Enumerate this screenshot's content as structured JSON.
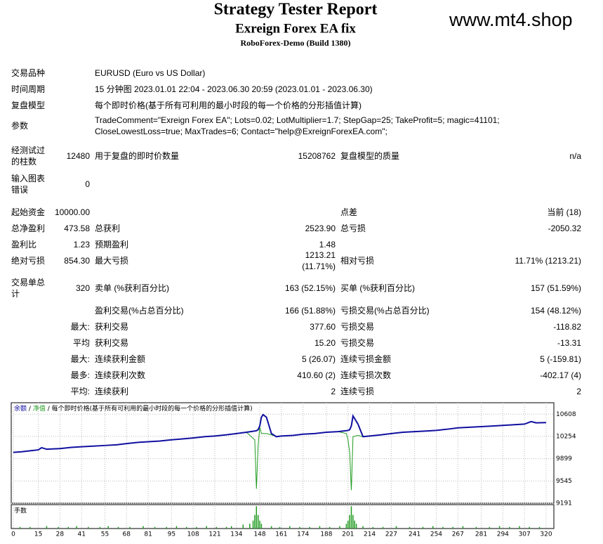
{
  "header": {
    "title": "Strategy Tester Report",
    "subtitle": "Exreign Forex EA fix",
    "server": "RoboForex-Demo (Build 1380)",
    "watermark": "www.mt4.shop"
  },
  "info": [
    {
      "label": "交易品种",
      "value": "EURUSD (Euro vs US Dollar)"
    },
    {
      "label": "时间周期",
      "value": "15 分钟图 2023.01.01 22:04 - 2023.06.30 20:59 (2023.01.01 - 2023.06.30)"
    },
    {
      "label": "复盘模型",
      "value": "每个即时价格(基于所有可利用的最小时段的每一个价格的分形插值计算)"
    },
    {
      "label": "参数",
      "value": "TradeComment=\"Exreign Forex EA\"; Lots=0.02; LotMultiplier=1.7; StepGap=25; TakeProfit=5; magic=41101; CloseLowestLoss=true; MaxTrades=6; Contact=\"help@ExreignForexEA.com\";"
    }
  ],
  "stats": [
    [
      "经测试过的柱数",
      "12480",
      "用于复盘的即时价数量",
      "15208762",
      "复盘模型的质量",
      "n/a"
    ],
    [
      "输入图表错误",
      "0",
      null,
      null,
      null,
      null
    ],
    [
      "起始资金",
      "10000.00",
      null,
      null,
      "点差",
      "当前 (18)"
    ],
    [
      "总净盈利",
      "473.58",
      "总获利",
      "2523.90",
      "总亏损",
      "-2050.32"
    ],
    [
      "盈利比",
      "1.23",
      "预期盈利",
      "1.48",
      null,
      null
    ],
    [
      "绝对亏损",
      "854.30",
      "最大亏损",
      "1213.21 (11.71%)",
      "相对亏损",
      "11.71% (1213.21)"
    ],
    [
      "交易单总计",
      "320",
      "卖单 (%获利百分比)",
      "163 (52.15%)",
      "买单 (%获利百分比)",
      "157 (51.59%)"
    ],
    [
      null,
      null,
      "盈利交易(%占总百分比)",
      "166 (51.88%)",
      "亏损交易(%占总百分比)",
      "154 (48.12%)"
    ],
    [
      null,
      "最大:",
      "获利交易",
      "377.60",
      "亏损交易",
      "-118.82"
    ],
    [
      null,
      "平均",
      "获利交易",
      "15.20",
      "亏损交易",
      "-13.31"
    ],
    [
      null,
      "最大:",
      "连续获利金额",
      "5 (26.07)",
      "连续亏损金额",
      "5 (-159.81)"
    ],
    [
      null,
      "最多:",
      "连续获利次数",
      "410.60 (2)",
      "连续亏损次数",
      "-402.17 (4)"
    ],
    [
      null,
      "平均:",
      "连续获利",
      "2",
      "连续亏损",
      "2"
    ]
  ],
  "chart_data": {
    "type": "line",
    "legend_separator": "/",
    "legend_note": "每个即时价格(基于所有可利用的最小时段的每一个价格的分形插值计算)",
    "x": [
      0,
      5,
      10,
      15,
      17,
      20,
      28,
      35,
      41,
      48,
      55,
      62,
      68,
      75,
      81,
      88,
      95,
      102,
      108,
      115,
      121,
      128,
      134,
      140,
      145,
      146,
      147,
      148,
      149,
      150,
      152,
      155,
      158,
      161,
      168,
      174,
      181,
      188,
      195,
      200,
      201,
      202,
      203,
      204,
      207,
      210,
      214,
      221,
      227,
      234,
      241,
      248,
      254,
      261,
      267,
      274,
      281,
      288,
      294,
      301,
      307,
      311,
      314,
      320
    ],
    "series": [
      {
        "name": "净值",
        "color": "#1f9a1f",
        "values": [
          10000,
          10010,
          10025,
          10040,
          10075,
          10050,
          10060,
          10080,
          10090,
          10100,
          10110,
          10120,
          10140,
          10160,
          10170,
          10180,
          10200,
          10215,
          10230,
          10250,
          10260,
          10280,
          10300,
          10320,
          10200,
          9420,
          10100,
          10400,
          10300,
          10300,
          10300,
          10280,
          10250,
          10260,
          10270,
          10290,
          10300,
          10320,
          10330,
          10300,
          10200,
          10000,
          9400,
          10250,
          10270,
          10250,
          10260,
          10280,
          10300,
          10320,
          10330,
          10340,
          10350,
          10370,
          10390,
          10400,
          10410,
          10420,
          10430,
          10440,
          10450,
          10490,
          10470,
          10474
        ]
      },
      {
        "name": "余额",
        "color": "#1010a0",
        "values": [
          10000,
          10010,
          10025,
          10040,
          10075,
          10050,
          10060,
          10080,
          10090,
          10100,
          10110,
          10120,
          10140,
          10160,
          10170,
          10180,
          10200,
          10215,
          10230,
          10250,
          10260,
          10280,
          10300,
          10320,
          10340,
          10345,
          10360,
          10420,
          10560,
          10600,
          10560,
          10300,
          10250,
          10260,
          10270,
          10290,
          10300,
          10320,
          10330,
          10345,
          10350,
          10360,
          10420,
          10580,
          10450,
          10250,
          10260,
          10280,
          10300,
          10320,
          10330,
          10340,
          10350,
          10370,
          10390,
          10400,
          10410,
          10420,
          10430,
          10440,
          10450,
          10490,
          10470,
          10474
        ]
      }
    ],
    "xlim": [
      0,
      320
    ],
    "xticks": [
      0,
      15,
      28,
      41,
      55,
      68,
      81,
      95,
      108,
      121,
      134,
      148,
      161,
      174,
      188,
      201,
      214,
      227,
      241,
      254,
      267,
      281,
      294,
      307,
      320
    ],
    "ylim": [
      9191,
      10790
    ],
    "yticks": [
      10608,
      10254,
      9899,
      9545,
      9191
    ],
    "grid": true,
    "volume": {
      "label": "手数",
      "color": "#1f9a1f",
      "ylim": [
        0,
        0.3
      ],
      "x": [
        4,
        10,
        20,
        27,
        33,
        38,
        45,
        52,
        57,
        63,
        70,
        78,
        85,
        92,
        98,
        104,
        110,
        116,
        122,
        128,
        131,
        138,
        142,
        144,
        145,
        146,
        147,
        148,
        149,
        155,
        160,
        166,
        172,
        178,
        184,
        190,
        196,
        200,
        201,
        202,
        203,
        204,
        205,
        206,
        210,
        216,
        222,
        230,
        238,
        246,
        252,
        258,
        264,
        270,
        278,
        286,
        292,
        298,
        304,
        310,
        316
      ],
      "values": [
        0.02,
        0.02,
        0.03,
        0.02,
        0.02,
        0.03,
        0.02,
        0.02,
        0.03,
        0.02,
        0.02,
        0.03,
        0.02,
        0.02,
        0.03,
        0.02,
        0.02,
        0.03,
        0.02,
        0.02,
        0.03,
        0.05,
        0.06,
        0.1,
        0.17,
        0.28,
        0.17,
        0.1,
        0.06,
        0.03,
        0.02,
        0.03,
        0.02,
        0.02,
        0.03,
        0.02,
        0.03,
        0.06,
        0.1,
        0.17,
        0.28,
        0.17,
        0.1,
        0.06,
        0.03,
        0.02,
        0.02,
        0.03,
        0.02,
        0.02,
        0.03,
        0.02,
        0.02,
        0.03,
        0.02,
        0.02,
        0.03,
        0.02,
        0.03,
        0.02,
        0.02
      ]
    }
  }
}
